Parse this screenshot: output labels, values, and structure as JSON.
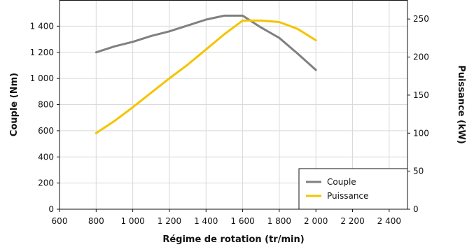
{
  "chart_data": {
    "type": "line",
    "title": "",
    "xlabel": "Régime de rotation (tr/min)",
    "ylabel_left": "Couple (Nm)",
    "ylabel_right": "Puissance (kW)",
    "xlim": [
      600,
      2500
    ],
    "x_ticks": [
      600,
      800,
      1000,
      1200,
      1400,
      1600,
      1800,
      2000,
      2200,
      2400
    ],
    "x_tick_labels": [
      "600",
      "800",
      "1 000",
      "1 200",
      "1 400",
      "1 600",
      "1 800",
      "2 000",
      "2 200",
      "2 400"
    ],
    "ylim_left": [
      0,
      1600
    ],
    "y_left_ticks": [
      0,
      200,
      400,
      600,
      800,
      1000,
      1200,
      1400
    ],
    "y_left_tick_labels": [
      "0",
      "200",
      "400",
      "600",
      "800",
      "1 000",
      "1 200",
      "1 400"
    ],
    "ylim_right": [
      0,
      275
    ],
    "y_right_ticks": [
      0,
      50,
      100,
      150,
      200,
      250
    ],
    "y_right_tick_labels": [
      "0",
      "50",
      "100",
      "150",
      "200",
      "250"
    ],
    "grid": true,
    "legend_position": "bottom-right",
    "series": [
      {
        "name": "Couple",
        "axis": "left",
        "color": "#808080",
        "x": [
          800,
          900,
          1000,
          1100,
          1200,
          1300,
          1400,
          1500,
          1600,
          1700,
          1800,
          1900,
          2000
        ],
        "y": [
          1200,
          1245,
          1280,
          1325,
          1360,
          1405,
          1450,
          1480,
          1480,
          1390,
          1310,
          1190,
          1065
        ]
      },
      {
        "name": "Puissance",
        "axis": "right",
        "color": "#f5c400",
        "x": [
          800,
          900,
          1000,
          1100,
          1200,
          1300,
          1400,
          1500,
          1600,
          1700,
          1800,
          1900,
          2000
        ],
        "y": [
          100,
          116,
          134,
          153,
          172,
          190,
          210,
          230,
          248,
          248,
          246,
          237,
          222
        ]
      }
    ]
  }
}
